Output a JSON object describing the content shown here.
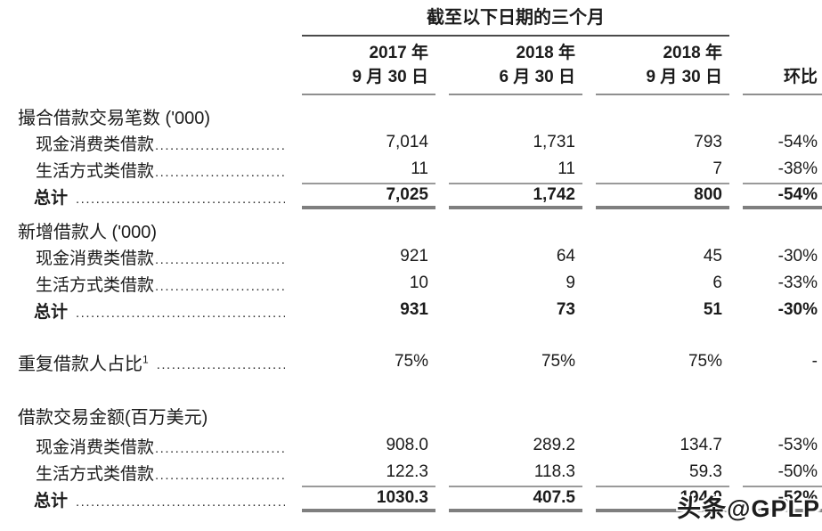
{
  "header": {
    "title": "截至以下日期的三个月",
    "columns": [
      {
        "line1": "2017 年",
        "line2": "9 月 30 日"
      },
      {
        "line1": "2018 年",
        "line2": "6 月 30 日"
      },
      {
        "line1": "2018 年",
        "line2": "9 月 30 日"
      }
    ],
    "qoq_label": "环比"
  },
  "ui": {
    "leader_dots": "........................................................................"
  },
  "table": {
    "sections": [
      {
        "heading": "撮合借款交易笔数 ('000)",
        "rows": [
          {
            "label": "现金消费类借款",
            "values": [
              "7,014",
              "1,731",
              "793",
              "-54%"
            ]
          },
          {
            "label": "生活方式类借款",
            "values": [
              "11",
              "11",
              "7",
              "-38%"
            ]
          }
        ],
        "total": {
          "label": "总计",
          "values": [
            "7,025",
            "1,742",
            "800",
            "-54%"
          ]
        }
      },
      {
        "heading": "新增借款人 ('000)",
        "rows": [
          {
            "label": "现金消费类借款",
            "values": [
              "921",
              "64",
              "45",
              "-30%"
            ]
          },
          {
            "label": "生活方式类借款",
            "values": [
              "10",
              "9",
              "6",
              "-33%"
            ]
          }
        ],
        "total": {
          "label": "总计",
          "values": [
            "931",
            "73",
            "51",
            "-30%"
          ]
        }
      },
      {
        "standalone": {
          "label": "重复借款人占比",
          "superscript": "1",
          "values": [
            "75%",
            "75%",
            "75%",
            "-"
          ]
        }
      },
      {
        "heading": "借款交易金额(百万美元)",
        "rows": [
          {
            "label": "现金消费类借款",
            "values": [
              "908.0",
              "289.2",
              "134.7",
              "-53%"
            ]
          },
          {
            "label": "生活方式类借款",
            "values": [
              "122.3",
              "118.3",
              "59.3",
              "-50%"
            ]
          }
        ],
        "total": {
          "label": "总计",
          "values": [
            "1030.3",
            "407.5",
            "194.0",
            "-52%"
          ]
        }
      }
    ]
  },
  "watermark": {
    "text": "头条@GPLP"
  }
}
